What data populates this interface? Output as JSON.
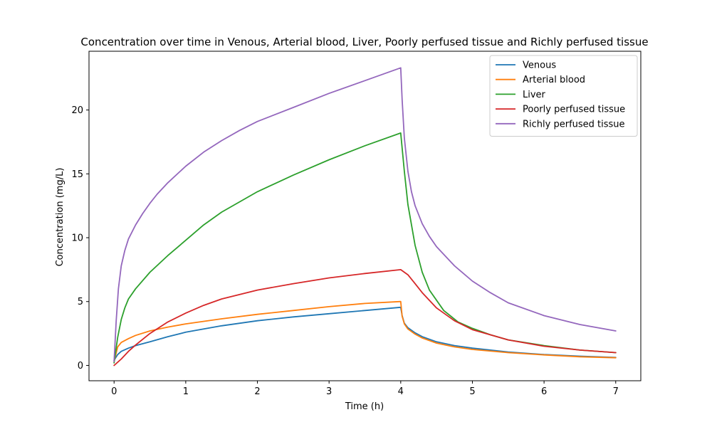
{
  "chart_data": {
    "type": "line",
    "title": "Concentration over time in Venous, Arterial blood, Liver, Poorly perfused tissue and Richly perfused tissue",
    "xlabel": "Time (h)",
    "ylabel": "Concentration (mg/L)",
    "xlim": [
      -0.35,
      7.35
    ],
    "ylim": [
      -1.2,
      24.6
    ],
    "xticks": [
      0,
      1,
      2,
      3,
      4,
      5,
      6,
      7
    ],
    "yticks": [
      0,
      5,
      10,
      15,
      20
    ],
    "grid": false,
    "legend_position": "upper right",
    "series": [
      {
        "name": "Venous",
        "color": "#1f77b4",
        "x": [
          0,
          0.05,
          0.1,
          0.2,
          0.3,
          0.5,
          0.75,
          1,
          1.5,
          2,
          2.5,
          3,
          3.5,
          4,
          4.02,
          4.05,
          4.1,
          4.2,
          4.3,
          4.5,
          4.75,
          5,
          5.5,
          6,
          6.5,
          7
        ],
        "y": [
          0.4,
          0.85,
          1.1,
          1.35,
          1.55,
          1.85,
          2.25,
          2.6,
          3.1,
          3.5,
          3.8,
          4.05,
          4.3,
          4.55,
          3.9,
          3.3,
          2.95,
          2.55,
          2.25,
          1.85,
          1.55,
          1.35,
          1.05,
          0.85,
          0.72,
          0.62
        ]
      },
      {
        "name": "Arterial blood",
        "color": "#ff7f0e",
        "x": [
          0,
          0.05,
          0.1,
          0.2,
          0.3,
          0.5,
          0.75,
          1,
          1.5,
          2,
          2.5,
          3,
          3.5,
          4,
          4.02,
          4.05,
          4.1,
          4.2,
          4.3,
          4.5,
          4.75,
          5,
          5.5,
          6,
          6.5,
          7
        ],
        "y": [
          0.3,
          1.45,
          1.8,
          2.1,
          2.35,
          2.7,
          3.0,
          3.25,
          3.65,
          4.0,
          4.3,
          4.6,
          4.85,
          5.0,
          3.85,
          3.25,
          2.85,
          2.45,
          2.15,
          1.75,
          1.45,
          1.25,
          1.0,
          0.82,
          0.68,
          0.6
        ]
      },
      {
        "name": "Liver",
        "color": "#2ca02c",
        "x": [
          0,
          0.05,
          0.1,
          0.15,
          0.2,
          0.3,
          0.5,
          0.75,
          1,
          1.25,
          1.5,
          2,
          2.5,
          3,
          3.5,
          4,
          4.05,
          4.1,
          4.2,
          4.3,
          4.4,
          4.6,
          4.8,
          5,
          5.25,
          5.5,
          6,
          6.5,
          7
        ],
        "y": [
          0.2,
          2.2,
          3.6,
          4.5,
          5.2,
          6.0,
          7.3,
          8.6,
          9.8,
          11.0,
          12.0,
          13.6,
          14.9,
          16.1,
          17.2,
          18.2,
          15.2,
          12.6,
          9.4,
          7.3,
          5.9,
          4.3,
          3.4,
          2.9,
          2.4,
          2.0,
          1.55,
          1.2,
          1.0
        ]
      },
      {
        "name": "Poorly perfused tissue",
        "color": "#d62728",
        "x": [
          0,
          0.1,
          0.2,
          0.3,
          0.5,
          0.75,
          1,
          1.25,
          1.5,
          2,
          2.5,
          3,
          3.5,
          4,
          4.1,
          4.2,
          4.3,
          4.5,
          4.75,
          5,
          5.5,
          6,
          6.5,
          7
        ],
        "y": [
          0.0,
          0.5,
          1.1,
          1.6,
          2.5,
          3.4,
          4.1,
          4.7,
          5.2,
          5.9,
          6.4,
          6.85,
          7.2,
          7.5,
          7.1,
          6.4,
          5.7,
          4.5,
          3.5,
          2.8,
          2.0,
          1.5,
          1.2,
          1.0
        ]
      },
      {
        "name": "Richly perfused tissue",
        "color": "#9467bd",
        "x": [
          0,
          0.03,
          0.06,
          0.1,
          0.15,
          0.2,
          0.3,
          0.4,
          0.5,
          0.6,
          0.75,
          1,
          1.25,
          1.5,
          1.75,
          2,
          2.5,
          3,
          3.5,
          4,
          4.02,
          4.05,
          4.1,
          4.15,
          4.2,
          4.3,
          4.4,
          4.5,
          4.75,
          5,
          5.25,
          5.5,
          6,
          6.5,
          7
        ],
        "y": [
          0.3,
          3.5,
          6.0,
          7.8,
          9.0,
          9.9,
          11.0,
          11.9,
          12.7,
          13.4,
          14.3,
          15.6,
          16.7,
          17.6,
          18.4,
          19.1,
          20.2,
          21.3,
          22.3,
          23.3,
          20.8,
          17.8,
          15.2,
          13.6,
          12.5,
          11.1,
          10.1,
          9.3,
          7.8,
          6.6,
          5.7,
          4.9,
          3.9,
          3.2,
          2.7
        ]
      }
    ]
  }
}
